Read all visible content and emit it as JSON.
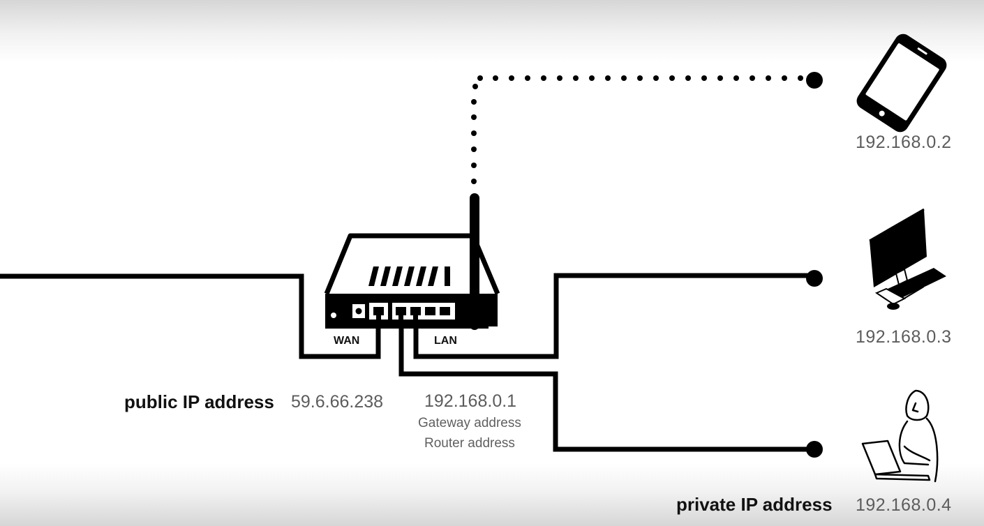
{
  "router": {
    "wan_label": "WAN",
    "lan_label": "LAN",
    "lan_ip": "192.168.0.1",
    "gateway_label": "Gateway address",
    "router_label": "Router address"
  },
  "public": {
    "label": "public IP address",
    "ip": "59.6.66.238"
  },
  "private": {
    "label": "private IP address"
  },
  "devices": [
    {
      "name": "phone",
      "icon": "smartphone-icon",
      "ip": "192.168.0.2",
      "connection": "wireless"
    },
    {
      "name": "desktop",
      "icon": "desktop-computer-icon",
      "ip": "192.168.0.3",
      "connection": "wired"
    },
    {
      "name": "laptop-user",
      "icon": "laptop-user-icon",
      "ip": "192.168.0.4",
      "connection": "wired"
    }
  ],
  "colors": {
    "line": "#000000",
    "text": "#5a5a5a",
    "background": "#ffffff"
  }
}
